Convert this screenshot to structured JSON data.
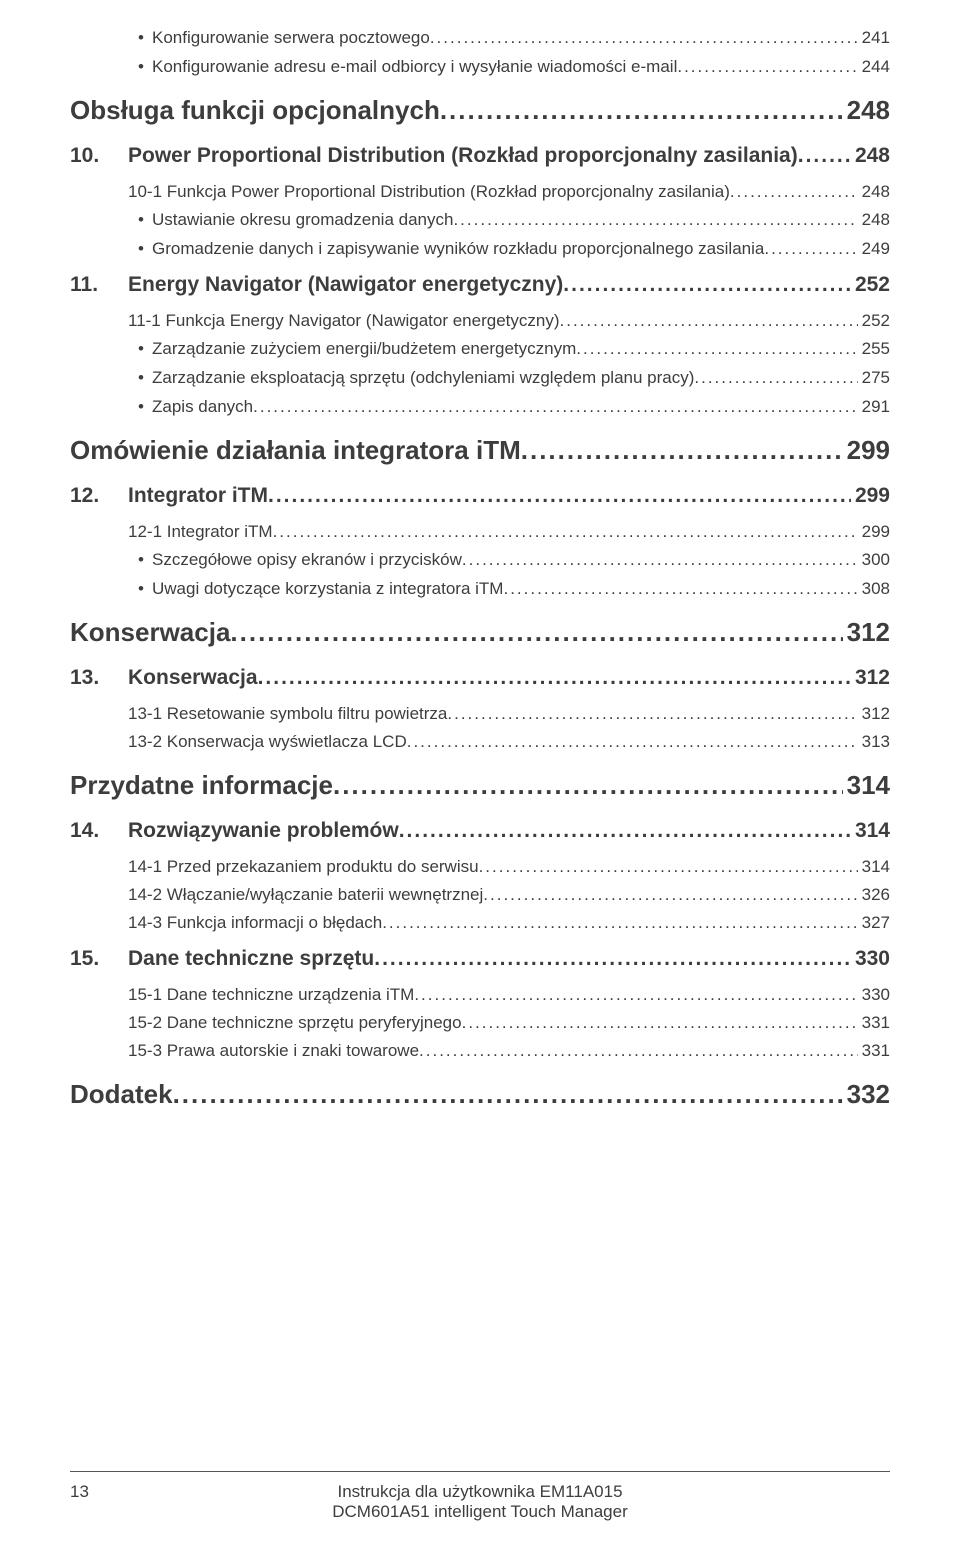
{
  "toc": {
    "b1": {
      "t": "Konfigurowanie serwera pocztowego",
      "p": "241"
    },
    "b2": {
      "t": "Konfigurowanie adresu e-mail odbiorcy i wysyłanie wiadomości e-mail",
      "p": "244"
    },
    "h1_1": {
      "t": "Obsługa funkcji opcjonalnych",
      "p": "248"
    },
    "h2_10": {
      "n": "10.",
      "t": "Power Proportional Distribution (Rozkład proporcjonalny zasilania)",
      "p": "248"
    },
    "s10_1": {
      "t": "10-1 Funkcja Power Proportional Distribution (Rozkład proporcjonalny zasilania)",
      "p": "248"
    },
    "b10a": {
      "t": "Ustawianie okresu gromadzenia danych",
      "p": "248"
    },
    "b10b": {
      "t": "Gromadzenie danych i zapisywanie wyników rozkładu proporcjonalnego zasilania",
      "p": "249"
    },
    "h2_11": {
      "n": "11.",
      "t": "Energy Navigator (Nawigator energetyczny)",
      "p": "252"
    },
    "s11_1": {
      "t": "11-1 Funkcja Energy Navigator (Nawigator energetyczny)",
      "p": "252"
    },
    "b11a": {
      "t": "Zarządzanie zużyciem energii/budżetem energetycznym",
      "p": "255"
    },
    "b11b": {
      "t": "Zarządzanie eksploatacją sprzętu (odchyleniami względem planu pracy)",
      "p": "275"
    },
    "b11c": {
      "t": "Zapis danych",
      "p": "291"
    },
    "h1_2": {
      "t": "Omówienie działania integratora iTM",
      "p": "299"
    },
    "h2_12": {
      "n": "12.",
      "t": "Integrator iTM",
      "p": "299"
    },
    "s12_1": {
      "t": "12-1 Integrator iTM",
      "p": "299"
    },
    "b12a": {
      "t": "Szczegółowe opisy ekranów i przycisków",
      "p": "300"
    },
    "b12b": {
      "t": "Uwagi dotyczące korzystania z integratora iTM",
      "p": "308"
    },
    "h1_3": {
      "t": "Konserwacja",
      "p": "312"
    },
    "h2_13": {
      "n": "13.",
      "t": "Konserwacja",
      "p": "312"
    },
    "s13_1": {
      "t": "13-1 Resetowanie symbolu filtru powietrza",
      "p": "312"
    },
    "s13_2": {
      "t": "13-2 Konserwacja wyświetlacza LCD",
      "p": "313"
    },
    "h1_4": {
      "t": "Przydatne informacje",
      "p": "314"
    },
    "h2_14": {
      "n": "14.",
      "t": "Rozwiązywanie problemów",
      "p": "314"
    },
    "s14_1": {
      "t": "14-1 Przed przekazaniem produktu do serwisu",
      "p": "314"
    },
    "s14_2": {
      "t": "14-2 Włączanie/wyłączanie baterii wewnętrznej",
      "p": "326"
    },
    "s14_3": {
      "t": "14-3 Funkcja informacji o błędach",
      "p": "327"
    },
    "h2_15": {
      "n": "15.",
      "t": "Dane techniczne sprzętu",
      "p": "330"
    },
    "s15_1": {
      "t": "15-1 Dane techniczne urządzenia iTM",
      "p": "330"
    },
    "s15_2": {
      "t": "15-2 Dane techniczne sprzętu peryferyjnego",
      "p": "331"
    },
    "s15_3": {
      "t": "15-3 Prawa autorskie i znaki towarowe",
      "p": "331"
    },
    "h1_5": {
      "t": "Dodatek",
      "p": "332"
    }
  },
  "footer": {
    "pageNumber": "13",
    "line1": "Instrukcja dla użytkownika   EM11A015",
    "line2": "DCM601A51   intelligent Touch Manager"
  }
}
